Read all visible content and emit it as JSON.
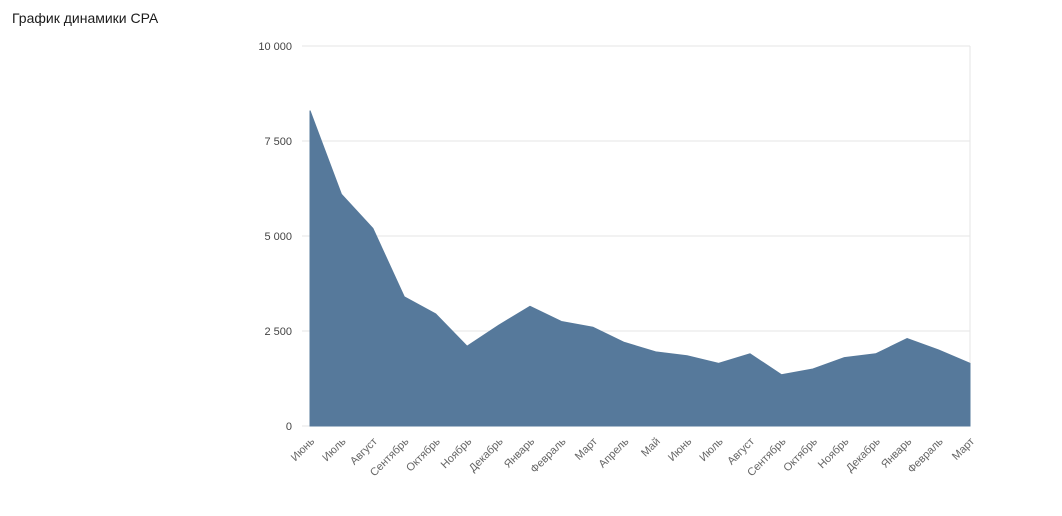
{
  "page": {
    "title": "График динамики CPA"
  },
  "chart_data": {
    "type": "area",
    "title": "График динамики CPA",
    "categories": [
      "Июнь",
      "Июль",
      "Август",
      "Сентябрь",
      "Октябрь",
      "Ноябрь",
      "Декабрь",
      "Январь",
      "Февраль",
      "Март",
      "Апрель",
      "Май",
      "Июнь",
      "Июль",
      "Август",
      "Сентябрь",
      "Октябрь",
      "Ноябрь",
      "Декабрь",
      "Январь",
      "Февраль",
      "Март"
    ],
    "values": [
      8300,
      6100,
      5200,
      3400,
      2950,
      2100,
      2650,
      3150,
      2750,
      2600,
      2200,
      1950,
      1850,
      1650,
      1900,
      1350,
      1500,
      1800,
      1900,
      2300,
      2000,
      1650
    ],
    "xlabel": "",
    "ylabel": "",
    "ylim": [
      0,
      10000
    ],
    "y_ticks": [
      0,
      2500,
      5000,
      7500,
      10000
    ],
    "y_tick_labels": [
      "0",
      "2 500",
      "5 000",
      "7 500",
      "10 000"
    ],
    "grid": "horizontal",
    "legend_position": "none",
    "colors": {
      "series_fill": "#56799b",
      "gridline": "#e6e6e6",
      "y_tick_text": "#444444",
      "x_tick_text": "#666666"
    }
  }
}
